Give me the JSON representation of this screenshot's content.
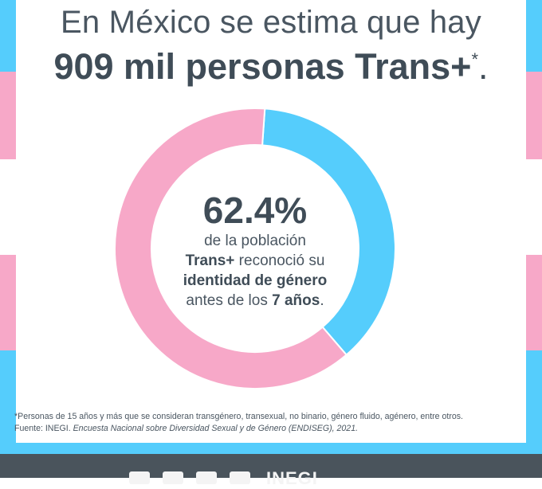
{
  "colors": {
    "pink": "#f7a8c8",
    "blue": "#55cdfc",
    "white": "#ffffff",
    "text": "#4a5661",
    "bar": "#4a545c"
  },
  "headline": {
    "line1": "En México se estima que hay",
    "line2_main": "909 mil personas Trans+",
    "line2_mark": "*",
    "line2_end": "."
  },
  "center_text": {
    "percent": "62.4%",
    "l1": "de la población",
    "l2_bold": "Trans+",
    "l2_rest": " reconoció su",
    "l3_bold": "identidad de género",
    "l4_pre": "antes de los ",
    "l4_bold": "7 años",
    "l4_end": "."
  },
  "chart_data": {
    "type": "pie",
    "donut": true,
    "slices": [
      {
        "value": 62.4,
        "color": "#f7a8c8"
      },
      {
        "value": 37.6,
        "color": "#55cdfc"
      }
    ]
  },
  "footnote": {
    "line1": "*Personas de 15 años y más que se consideran transgénero, transexual, no binario, género fluido, agénero, entre otros.",
    "source_pre": "Fuente: INEGI. ",
    "source_title": "Encuesta Nacional sobre Diversidad Sexual y de Género (ENDISEG), 2021."
  },
  "brand_text": "INEGI",
  "social_icons": [
    "facebook-icon",
    "instagram-icon",
    "twitter-icon",
    "youtube-icon"
  ]
}
